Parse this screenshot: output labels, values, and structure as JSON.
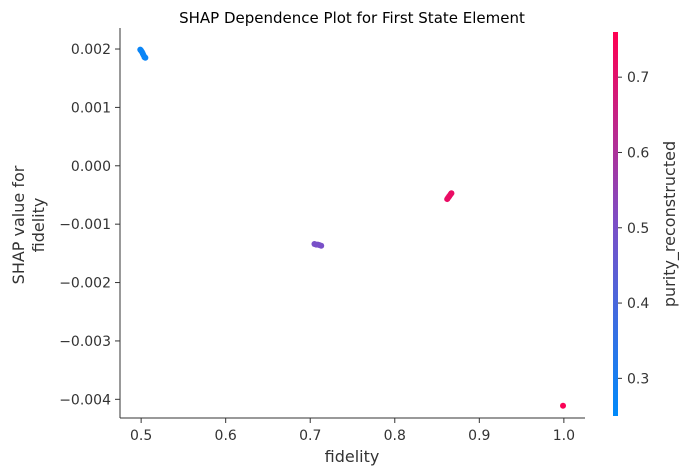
{
  "chart_data": {
    "type": "scatter",
    "title": "SHAP Dependence Plot for First State Element",
    "xlabel": "fidelity",
    "ylabel_lines": [
      "SHAP value for",
      "fidelity"
    ],
    "xlim": [
      0.475,
      1.025
    ],
    "ylim": [
      -0.00432,
      0.00236
    ],
    "x_ticks": [
      0.5,
      0.6,
      0.7,
      0.8,
      0.9,
      1.0
    ],
    "x_tick_labels": [
      "0.5",
      "0.6",
      "0.7",
      "0.8",
      "0.9",
      "1.0"
    ],
    "y_ticks": [
      0.002,
      0.001,
      0.0,
      -0.001,
      -0.002,
      -0.003,
      -0.004
    ],
    "y_tick_labels": [
      "0.002",
      "0.001",
      "0.000",
      "−0.001",
      "−0.002",
      "−0.003",
      "−0.004"
    ],
    "grid": false,
    "colorbar": {
      "label": "purity_reconstructed",
      "range": [
        0.25,
        0.76
      ],
      "ticks": [
        0.3,
        0.4,
        0.5,
        0.6,
        0.7
      ],
      "tick_labels": [
        "0.3",
        "0.4",
        "0.5",
        "0.6",
        "0.7"
      ],
      "colormap_stops": [
        "#008AFA",
        "#7B4FC7",
        "#FF0051"
      ]
    },
    "points": [
      {
        "x": 0.499,
        "y": 0.00199,
        "c": 0.27
      },
      {
        "x": 0.5,
        "y": 0.00197,
        "c": 0.27
      },
      {
        "x": 0.501,
        "y": 0.00195,
        "c": 0.27
      },
      {
        "x": 0.502,
        "y": 0.00192,
        "c": 0.27
      },
      {
        "x": 0.503,
        "y": 0.00189,
        "c": 0.27
      },
      {
        "x": 0.504,
        "y": 0.00186,
        "c": 0.27
      },
      {
        "x": 0.505,
        "y": 0.00185,
        "c": 0.27
      },
      {
        "x": 0.705,
        "y": -0.00134,
        "c": 0.5
      },
      {
        "x": 0.707,
        "y": -0.00135,
        "c": 0.5
      },
      {
        "x": 0.709,
        "y": -0.00135,
        "c": 0.5
      },
      {
        "x": 0.711,
        "y": -0.00136,
        "c": 0.5
      },
      {
        "x": 0.713,
        "y": -0.00137,
        "c": 0.5
      },
      {
        "x": 0.862,
        "y": -0.00057,
        "c": 0.72
      },
      {
        "x": 0.863,
        "y": -0.00055,
        "c": 0.72
      },
      {
        "x": 0.864,
        "y": -0.00053,
        "c": 0.72
      },
      {
        "x": 0.865,
        "y": -0.00051,
        "c": 0.72
      },
      {
        "x": 0.866,
        "y": -0.00049,
        "c": 0.72
      },
      {
        "x": 0.867,
        "y": -0.00047,
        "c": 0.72
      },
      {
        "x": 0.999,
        "y": -0.00411,
        "c": 0.75
      }
    ]
  }
}
